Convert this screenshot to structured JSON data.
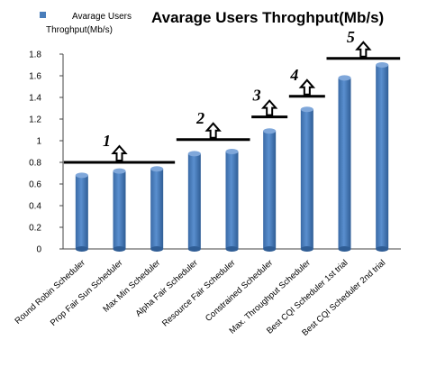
{
  "chart_data": {
    "type": "bar",
    "title": "Avarage Users Throghput(Mb/s)",
    "legend": {
      "label": "Avarage Users Throghput(Mb/s)",
      "color": "#4a7ebb",
      "placement": "top-left"
    },
    "categories": [
      "Round Robin Scheduler",
      "Prop Fair Sun Scheduler",
      "Max Min Scheduler",
      "Alpha Fair Scheduler",
      "Resource Fair Scheduler",
      "Constrained Scheduler",
      "Max. Throughput Scheduler",
      "Best CQI Scheduler 1st trial",
      "Best CQI Scheduler 2nd trial"
    ],
    "series": [
      {
        "values": [
          0.68,
          0.72,
          0.74,
          0.88,
          0.9,
          1.09,
          1.29,
          1.58,
          1.7
        ]
      }
    ],
    "ylim": [
      0,
      1.8
    ],
    "yticks": [
      "0",
      "0.2",
      "0.4",
      "0.6",
      "0.8",
      "1",
      "1.2",
      "1.4",
      "1.6",
      "1.8"
    ],
    "grid": false,
    "bar_color": "#4a7ebb",
    "annotations": [
      {
        "label": "1",
        "from_index": 0,
        "to_index": 2,
        "level": 0.8
      },
      {
        "label": "2",
        "from_index": 3,
        "to_index": 4,
        "level": 1.01
      },
      {
        "label": "3",
        "from_index": 5,
        "to_index": 5,
        "level": 1.22
      },
      {
        "label": "4",
        "from_index": 6,
        "to_index": 6,
        "level": 1.41
      },
      {
        "label": "5",
        "from_index": 7,
        "to_index": 8,
        "level": 1.76
      }
    ]
  }
}
